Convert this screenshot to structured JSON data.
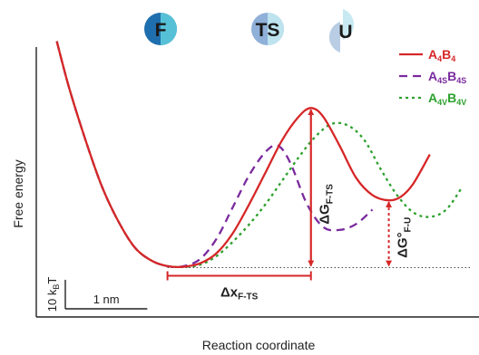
{
  "chart_data": {
    "type": "line",
    "title": "",
    "xlabel": "Reaction coordinate",
    "ylabel": "Free energy",
    "x_unit": "nm",
    "y_unit": "kBT",
    "scale_bars": {
      "x": {
        "value": 1,
        "label": "1 nm"
      },
      "y": {
        "value": 10,
        "label_main": "10 k",
        "label_sub": "B",
        "label_tail": "T"
      }
    },
    "states": [
      {
        "id": "F",
        "label": "F",
        "x": 1.0
      },
      {
        "id": "TS",
        "label": "TS",
        "x": 2.15
      },
      {
        "id": "U",
        "label": "U",
        "x": 3.0
      }
    ],
    "legend": {
      "position": "top-right"
    },
    "series": [
      {
        "name_main": "A",
        "name_sub1": "4",
        "name_mid": "B",
        "name_sub2": "4",
        "color": "#d62728",
        "dash": "solid",
        "x": [
          -0.95,
          -0.8,
          -0.6,
          -0.4,
          -0.2,
          0.0,
          0.2,
          0.4,
          0.6,
          0.8,
          1.0,
          1.2,
          1.4,
          1.6,
          1.8,
          2.0,
          2.15,
          2.3,
          2.5,
          2.7,
          2.9,
          3.1,
          3.25,
          3.4,
          3.6
        ],
        "y": [
          78,
          62,
          44,
          28,
          16,
          7,
          2.5,
          0.5,
          0.3,
          1.5,
          5,
          12,
          22,
          33,
          44,
          52,
          55,
          52,
          42,
          31,
          25,
          23.2,
          24.5,
          29,
          39
        ]
      },
      {
        "name_main": "A",
        "name_sub1": "4S",
        "name_mid": "B",
        "name_sub2": "4S",
        "color": "#7a2a9e",
        "dash": "dashed",
        "x": [
          -0.95,
          -0.8,
          -0.6,
          -0.4,
          -0.2,
          0.0,
          0.2,
          0.4,
          0.6,
          0.8,
          1.0,
          1.2,
          1.4,
          1.6,
          1.75,
          1.9,
          2.1,
          2.3,
          2.5,
          2.7,
          2.9
        ],
        "y": [
          78,
          62,
          44,
          28,
          16,
          7,
          2.5,
          0.5,
          0.5,
          3,
          10,
          21,
          32,
          40,
          42,
          36,
          22,
          14,
          13,
          15,
          20
        ]
      },
      {
        "name_main": "A",
        "name_sub1": "4V",
        "name_mid": "B",
        "name_sub2": "4V",
        "color": "#2ca02c",
        "dash": "dotted",
        "x": [
          -0.95,
          -0.8,
          -0.6,
          -0.4,
          -0.2,
          0.0,
          0.2,
          0.4,
          0.6,
          0.8,
          1.0,
          1.2,
          1.4,
          1.6,
          1.8,
          2.0,
          2.2,
          2.4,
          2.6,
          2.8,
          3.0,
          3.2,
          3.4,
          3.6,
          3.8,
          4.0
        ],
        "y": [
          78,
          62,
          44,
          28,
          16,
          7,
          2.5,
          0.5,
          0.3,
          1,
          4,
          9,
          15,
          22,
          30,
          38,
          45,
          49.5,
          49,
          44,
          34,
          25,
          19,
          17.5,
          20,
          28
        ]
      }
    ],
    "annotations": [
      {
        "id": "dG_FTS",
        "main": "ΔG",
        "sub": "F-TS",
        "x": 2.15,
        "y_from": 0,
        "y_to": 55,
        "style": "solid"
      },
      {
        "id": "dG0_FU",
        "main": "ΔG°",
        "sub": "F-U",
        "x": 3.1,
        "y_from": 0,
        "y_to": 23.2,
        "style": "dotted"
      },
      {
        "id": "dx_FTS",
        "main": "Δx",
        "sub": "F-TS",
        "x_from": 0.4,
        "x_to": 2.15,
        "y": 0,
        "style": "solid"
      }
    ],
    "baseline": {
      "y": 0,
      "style": "dotted"
    },
    "xlim": [
      -1.2,
      4.2
    ],
    "ylim": [
      -17,
      76
    ],
    "grid": false
  }
}
